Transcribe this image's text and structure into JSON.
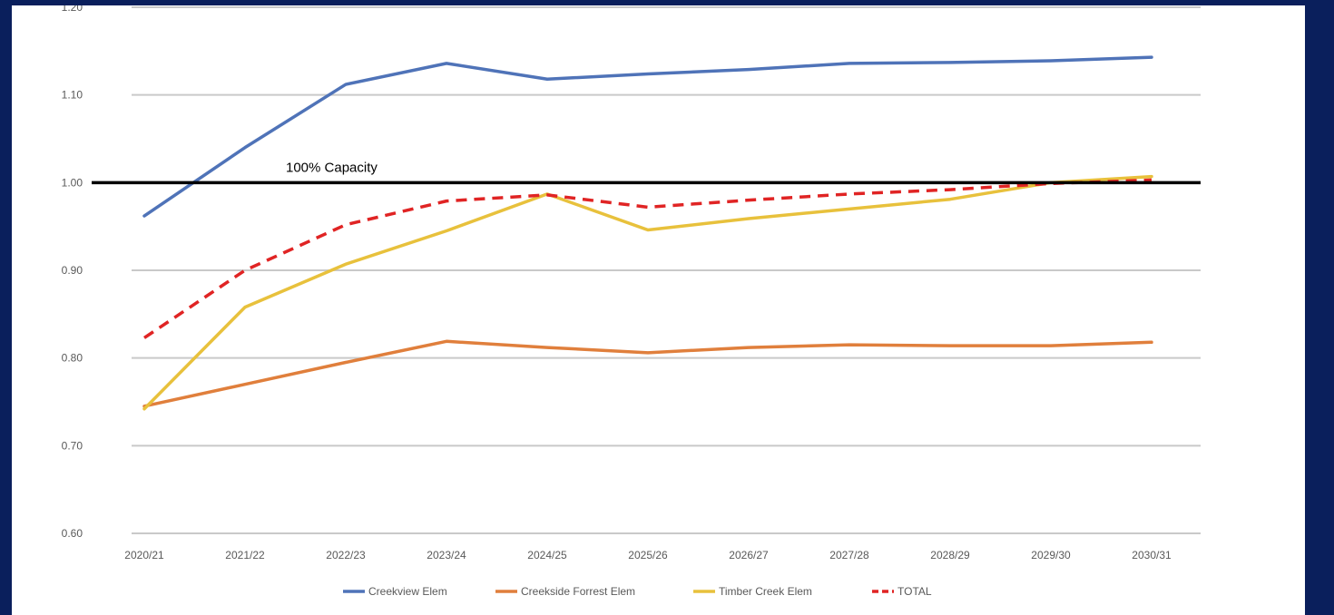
{
  "chart_data": {
    "type": "line",
    "categories": [
      "2020/21",
      "2021/22",
      "2022/23",
      "2023/24",
      "2024/25",
      "2025/26",
      "2026/27",
      "2027/28",
      "2028/29",
      "2029/30",
      "2030/31"
    ],
    "ylim": [
      0.6,
      1.2
    ],
    "yticks": [
      "0.60",
      "0.70",
      "0.80",
      "0.90",
      "1.00",
      "1.10",
      "1.20"
    ],
    "grid": true,
    "legend_position": "bottom",
    "reference_line": {
      "value": 1.0,
      "label": "100% Capacity",
      "color": "#000000"
    },
    "series": [
      {
        "name": "Creekview Elem",
        "color": "#4f73b8",
        "dashed": false,
        "values": [
          0.962,
          1.04,
          1.112,
          1.136,
          1.118,
          1.124,
          1.129,
          1.136,
          1.137,
          1.139,
          1.143
        ]
      },
      {
        "name": "Creekside Forrest Elem",
        "color": "#e07f3c",
        "dashed": false,
        "values": [
          0.745,
          0.77,
          0.795,
          0.819,
          0.812,
          0.806,
          0.812,
          0.815,
          0.814,
          0.814,
          0.818
        ]
      },
      {
        "name": "Timber Creek Elem",
        "color": "#e8c13c",
        "dashed": false,
        "values": [
          0.742,
          0.858,
          0.907,
          0.945,
          0.987,
          0.946,
          0.959,
          0.97,
          0.981,
          1.0,
          1.007
        ]
      },
      {
        "name": "TOTAL",
        "color": "#e02424",
        "dashed": true,
        "values": [
          0.823,
          0.9,
          0.952,
          0.979,
          0.986,
          0.972,
          0.98,
          0.987,
          0.992,
          0.999,
          1.003
        ]
      }
    ]
  }
}
